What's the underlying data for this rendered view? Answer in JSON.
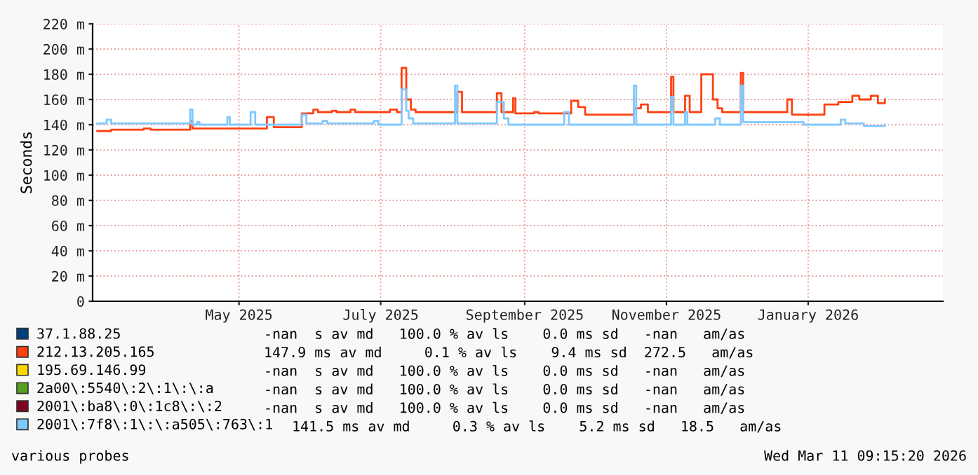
{
  "chart_data": {
    "type": "step",
    "ylabel": "Seconds",
    "ylim": [
      0,
      220
    ],
    "yticks": [
      0,
      {
        "value": 20,
        "label": "20 m"
      },
      {
        "value": 40,
        "label": "40 m"
      },
      {
        "value": 60,
        "label": "60 m"
      },
      {
        "value": 80,
        "label": "80 m"
      },
      {
        "value": 100,
        "label": "100 m"
      },
      {
        "value": 120,
        "label": "120 m"
      },
      {
        "value": 140,
        "label": "140 m"
      },
      {
        "value": 160,
        "label": "160 m"
      },
      {
        "value": 180,
        "label": "180 m"
      },
      {
        "value": 200,
        "label": "200 m"
      },
      {
        "value": 220,
        "label": "220 m"
      }
    ],
    "xlim": [
      "2025-03-14",
      "2026-03-15"
    ],
    "xticks": [
      {
        "value": "2025-05-16",
        "label": "May 2025"
      },
      {
        "value": "2025-07-16",
        "label": "July 2025"
      },
      {
        "value": "2025-09-16",
        "label": "September 2025"
      },
      {
        "value": "2025-11-16",
        "label": "November 2025"
      },
      {
        "value": "2026-01-16",
        "label": "January 2026"
      }
    ],
    "grid": true,
    "legend": "bottom",
    "marker": "none",
    "line_style": "solid",
    "series": [
      {
        "name": "37.1.88.25",
        "color": "#003f7f"
      },
      {
        "name": "212.13.205.165",
        "color": "#ff4010",
        "x": [
          "2025-03-16",
          "2025-03-22",
          "2025-04-05",
          "2025-04-08",
          "2025-04-25",
          "2025-04-26",
          "2025-05-28",
          "2025-05-31",
          "2025-06-12",
          "2025-06-17",
          "2025-06-19",
          "2025-06-25",
          "2025-06-27",
          "2025-07-03",
          "2025-07-05",
          "2025-07-20",
          "2025-07-23",
          "2025-07-25",
          "2025-07-27",
          "2025-07-29",
          "2025-07-31",
          "2025-08-18",
          "2025-08-20",
          "2025-09-04",
          "2025-09-06",
          "2025-09-11",
          "2025-09-12",
          "2025-09-20",
          "2025-09-22",
          "2025-10-06",
          "2025-10-09",
          "2025-10-12",
          "2025-11-02",
          "2025-11-05",
          "2025-11-08",
          "2025-11-18",
          "2025-11-19",
          "2025-11-24",
          "2025-11-26",
          "2025-12-01",
          "2025-12-06",
          "2025-12-08",
          "2025-12-10",
          "2025-12-18",
          "2025-12-19",
          "2026-01-07",
          "2026-01-09",
          "2026-01-23",
          "2026-01-29",
          "2026-02-04",
          "2026-02-07",
          "2026-02-12",
          "2026-02-15",
          "2026-02-18"
        ],
        "values": [
          135,
          136,
          137,
          136,
          143,
          137,
          146,
          138,
          149,
          152,
          150,
          151,
          150,
          152,
          150,
          152,
          150,
          185,
          160,
          152,
          150,
          166,
          150,
          165,
          150,
          161,
          149,
          150,
          149,
          159,
          154,
          148,
          153,
          156,
          150,
          178,
          150,
          163,
          150,
          180,
          160,
          153,
          150,
          181,
          150,
          160,
          148,
          156,
          158,
          163,
          160,
          163,
          157,
          160
        ]
      },
      {
        "name": "195.69.146.99",
        "color": "#ffd700"
      },
      {
        "name": "2a00\\:5540\\:2\\:1\\:\\:a",
        "color": "#55a020"
      },
      {
        "name": "2001\\:ba8\\:0\\:1c8\\:\\:2",
        "color": "#800020"
      },
      {
        "name": "2001\\:7f8\\:1\\:\\:a505\\:763\\:1",
        "color": "#7fc8ff",
        "x": [
          "2025-03-16",
          "2025-03-20",
          "2025-03-22",
          "2025-04-25",
          "2025-04-26",
          "2025-04-28",
          "2025-04-29",
          "2025-05-11",
          "2025-05-12",
          "2025-05-21",
          "2025-05-23",
          "2025-06-12",
          "2025-06-14",
          "2025-06-21",
          "2025-06-23",
          "2025-07-13",
          "2025-07-15",
          "2025-07-25",
          "2025-07-27",
          "2025-07-28",
          "2025-07-30",
          "2025-08-17",
          "2025-08-18",
          "2025-09-04",
          "2025-09-07",
          "2025-09-09",
          "2025-10-03",
          "2025-10-05",
          "2025-11-02",
          "2025-11-03",
          "2025-11-18",
          "2025-11-19",
          "2025-11-24",
          "2025-11-25",
          "2025-12-07",
          "2025-12-09",
          "2025-12-18",
          "2025-12-19",
          "2026-01-14",
          "2026-01-30",
          "2026-02-01",
          "2026-02-09",
          "2026-02-18"
        ],
        "values": [
          141,
          144,
          141,
          152,
          140,
          142,
          140,
          146,
          140,
          150,
          140,
          148,
          141,
          143,
          141,
          143,
          140,
          168,
          151,
          145,
          141,
          171,
          141,
          158,
          145,
          140,
          150,
          140,
          171,
          140,
          162,
          140,
          150,
          140,
          145,
          140,
          171,
          142,
          140,
          144,
          141,
          139,
          140
        ]
      }
    ],
    "annotations": [
      "-nan  s av md   100.0 % av ls    0.0 ms sd   -nan   am/as",
      "147.9 ms av md     0.1 % av ls    9.4 ms sd  272.5   am/as",
      "-nan  s av md   100.0 % av ls    0.0 ms sd   -nan   am/as",
      "-nan  s av md   100.0 % av ls    0.0 ms sd   -nan   am/as",
      "-nan  s av md   100.0 % av ls    0.0 ms sd   -nan   am/as",
      "141.5 ms av md     0.3 % av ls    5.2 ms sd   18.5   am/as",
      "various probes",
      "Wed Mar 11 09:15:20 2026"
    ]
  }
}
